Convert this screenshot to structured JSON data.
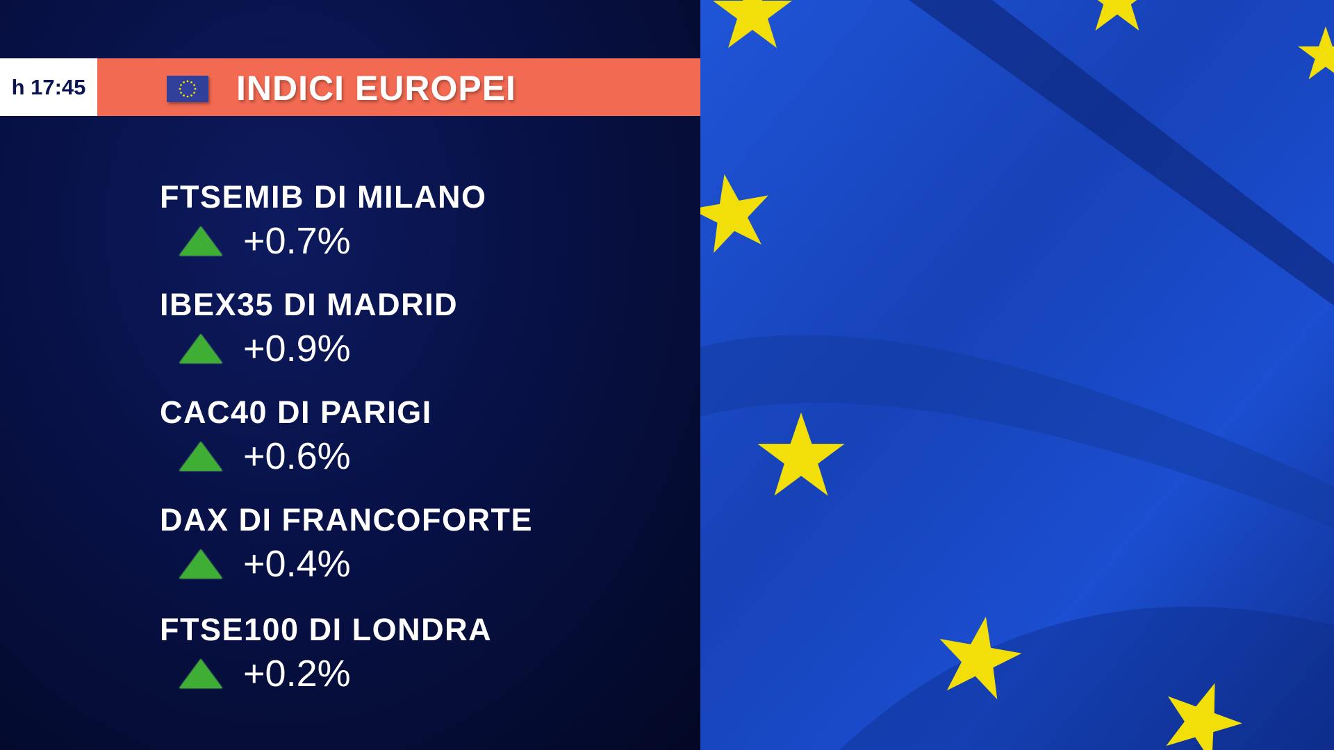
{
  "header": {
    "time": "h 17:45",
    "title": "INDICI EUROPEI",
    "icon": "eu-flag-icon"
  },
  "indices": [
    {
      "name": "FTSEMIB DI MILANO",
      "change": "+0.7%",
      "direction": "up"
    },
    {
      "name": "IBEX35 DI MADRID",
      "change": "+0.9%",
      "direction": "up"
    },
    {
      "name": "CAC40 DI PARIGI",
      "change": "+0.6%",
      "direction": "up"
    },
    {
      "name": "DAX DI FRANCOFORTE",
      "change": "+0.4%",
      "direction": "up"
    },
    {
      "name": "FTSE100 DI LONDRA",
      "change": "+0.2%",
      "direction": "up"
    }
  ],
  "colors": {
    "accent": "#f36a52",
    "up": "#3fae34",
    "flag_blue": "#1a4fd0",
    "star": "#f5e400"
  }
}
